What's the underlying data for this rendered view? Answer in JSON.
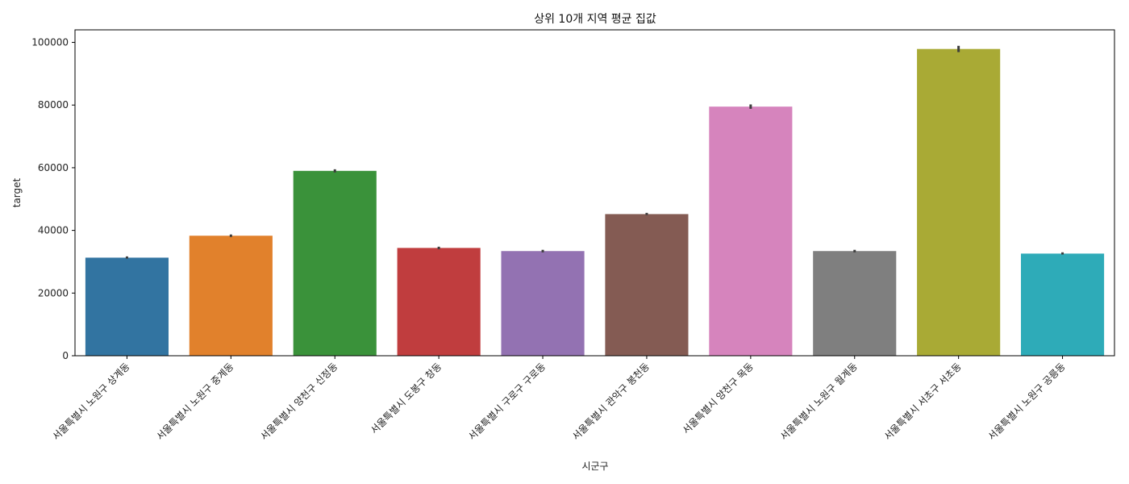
{
  "chart_data": {
    "type": "bar",
    "title": "상위 10개 지역 평균 집값",
    "xlabel": "시군구",
    "ylabel": "target",
    "ylim": [
      0,
      104000
    ],
    "yticks": [
      0,
      20000,
      40000,
      60000,
      80000,
      100000
    ],
    "categories": [
      "서울특별시 노원구 상계동",
      "서울특별시 노원구 중계동",
      "서울특별시 양천구 신정동",
      "서울특별시 도봉구 창동",
      "서울특별시 구로구 구로동",
      "서울특별시 관악구 봉천동",
      "서울특별시 양천구 목동",
      "서울특별시 노원구 월계동",
      "서울특별시 서초구 서초동",
      "서울특별시 노원구 공릉동"
    ],
    "values": [
      31300,
      38300,
      59000,
      34400,
      33400,
      45200,
      79500,
      33400,
      97900,
      32600
    ],
    "error_low": [
      31000,
      37900,
      58500,
      34000,
      33000,
      44900,
      78800,
      33000,
      96900,
      32300
    ],
    "error_high": [
      31700,
      38700,
      59500,
      34800,
      33800,
      45600,
      80200,
      33800,
      98900,
      33000
    ],
    "colors": [
      "#3274a1",
      "#e1812c",
      "#3a923a",
      "#c03d3e",
      "#9372b2",
      "#845b53",
      "#d684bd",
      "#7f7f7f",
      "#a9aa35",
      "#2eabb8"
    ],
    "grid": false,
    "legend": "none"
  }
}
